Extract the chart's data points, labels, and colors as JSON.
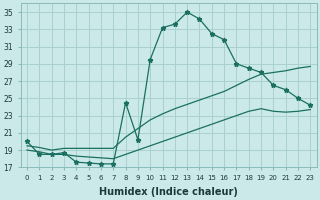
{
  "xlabel": "Humidex (Indice chaleur)",
  "bg_color": "#cce9e9",
  "grid_color": "#aad0d0",
  "line_color": "#1a7060",
  "xlim": [
    -0.5,
    23.5
  ],
  "ylim": [
    17,
    36
  ],
  "yticks": [
    17,
    19,
    21,
    23,
    25,
    27,
    29,
    31,
    33,
    35
  ],
  "xticks": [
    0,
    1,
    2,
    3,
    4,
    5,
    6,
    7,
    8,
    9,
    10,
    11,
    12,
    13,
    14,
    15,
    16,
    17,
    18,
    19,
    20,
    21,
    22,
    23
  ],
  "line1_x": [
    0,
    1,
    2,
    3,
    4,
    5,
    6,
    7,
    8,
    9,
    10,
    11,
    12,
    13,
    14,
    15,
    16,
    17,
    18,
    19,
    20,
    21,
    22,
    23
  ],
  "line1_y": [
    20.0,
    18.5,
    18.5,
    18.7,
    17.6,
    17.5,
    17.4,
    17.4,
    24.5,
    20.2,
    29.5,
    33.2,
    33.6,
    35.0,
    34.2,
    32.5,
    31.8,
    29.0,
    28.5,
    28.0,
    26.5,
    26.0,
    25.0,
    24.2
  ],
  "line2_x": [
    0,
    1,
    2,
    3,
    4,
    5,
    6,
    7,
    8,
    9,
    10,
    11,
    12,
    13,
    14,
    15,
    16,
    17,
    18,
    19,
    20,
    21,
    22,
    23
  ],
  "line2_y": [
    19.5,
    19.3,
    19.0,
    19.2,
    19.2,
    19.2,
    19.2,
    19.2,
    20.5,
    21.5,
    22.5,
    23.2,
    23.8,
    24.3,
    24.8,
    25.3,
    25.8,
    26.5,
    27.2,
    27.8,
    28.0,
    28.2,
    28.5,
    28.7
  ],
  "line3_x": [
    0,
    1,
    2,
    3,
    4,
    5,
    6,
    7,
    8,
    9,
    10,
    11,
    12,
    13,
    14,
    15,
    16,
    17,
    18,
    19,
    20,
    21,
    22,
    23
  ],
  "line3_y": [
    19.0,
    18.8,
    18.5,
    18.5,
    18.3,
    18.2,
    18.1,
    18.0,
    18.5,
    19.0,
    19.5,
    20.0,
    20.5,
    21.0,
    21.5,
    22.0,
    22.5,
    23.0,
    23.5,
    23.8,
    23.5,
    23.4,
    23.5,
    23.7
  ]
}
